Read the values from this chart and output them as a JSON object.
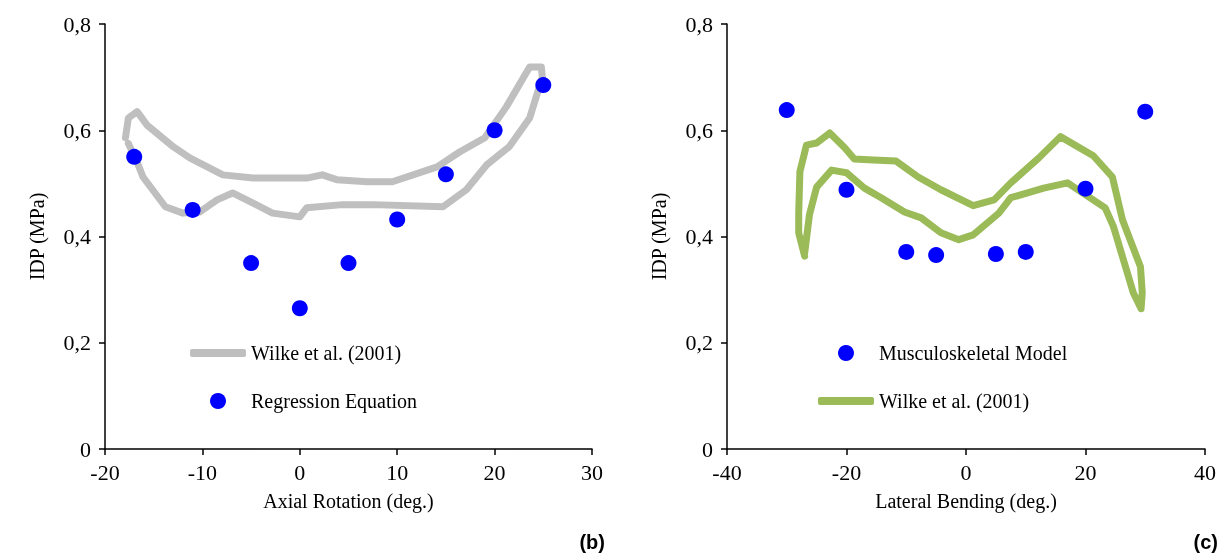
{
  "chart_data": [
    {
      "type": "line",
      "xlabel": "Axial Rotation (deg.)",
      "ylabel": "IDP (MPa)",
      "xlim": [
        -20,
        30
      ],
      "xticks": [
        -20,
        -10,
        0,
        10,
        20,
        30
      ],
      "ylim": [
        0,
        0.8
      ],
      "yticks": [
        0,
        {
          "value": 0.2,
          "label": "0,2"
        },
        {
          "value": 0.4,
          "label": "0,4"
        },
        {
          "value": 0.6,
          "label": "0,6"
        },
        {
          "value": 0.8,
          "label": "0,8"
        }
      ],
      "grid": false,
      "legend": "bottom",
      "line_style": "solid",
      "annotations": [
        "(b)"
      ],
      "series": [
        {
          "name": "Wilke et al. (2001)",
          "color": "#bfbfbf",
          "marker": "none",
          "x": [
            -17.9,
            -17.6,
            -16.7,
            -15.7,
            -13.0,
            -11.3,
            -9.5,
            -7.9,
            -4.8,
            0.7,
            2.3,
            3.8,
            6.9,
            9.5,
            14.1,
            16.4,
            19.0,
            21.2,
            23.6,
            24.8,
            24.9,
            23.6,
            21.5,
            19.2,
            17.1,
            14.7,
            7.5,
            4.4,
            0.7,
            0,
            -2.8,
            -4.8,
            -6.9,
            -8.5,
            -10.3,
            -12.0,
            -13.8,
            -16.1,
            -16.7,
            -17.6
          ],
          "values": [
            0.586,
            0.623,
            0.635,
            0.61,
            0.569,
            0.548,
            0.531,
            0.516,
            0.51,
            0.51,
            0.516,
            0.507,
            0.503,
            0.503,
            0.531,
            0.559,
            0.586,
            0.644,
            0.719,
            0.719,
            0.7,
            0.623,
            0.569,
            0.535,
            0.488,
            0.456,
            0.46,
            0.46,
            0.454,
            0.437,
            0.444,
            0.463,
            0.482,
            0.469,
            0.446,
            0.444,
            0.456,
            0.512,
            0.54,
            0.575
          ]
        },
        {
          "name": "Regression Equation",
          "type": "scatter",
          "color": "#0000ff",
          "marker": "circle",
          "x": [
            -17,
            -11,
            -5,
            0,
            5,
            10,
            15,
            20,
            25
          ],
          "values": [
            0.55,
            0.45,
            0.35,
            0.265,
            0.35,
            0.432,
            0.517,
            0.6,
            0.685
          ]
        }
      ]
    },
    {
      "type": "line",
      "xlabel": "Lateral Bending (deg.)",
      "ylabel": "IDP (MPa)",
      "xlim": [
        -40,
        40
      ],
      "xticks": [
        -40,
        -20,
        0,
        20,
        40
      ],
      "ylim": [
        0,
        0.8
      ],
      "yticks": [
        0,
        {
          "value": 0.2,
          "label": "0,2"
        },
        {
          "value": 0.4,
          "label": "0,4"
        },
        {
          "value": 0.6,
          "label": "0,6"
        },
        {
          "value": 0.8,
          "label": "0,8"
        }
      ],
      "grid": false,
      "legend": "bottom",
      "line_style": "solid",
      "annotations": [
        "(c)"
      ],
      "series": [
        {
          "name": "Musculoskeletal Model",
          "type": "scatter",
          "color": "#0000ff",
          "marker": "circle",
          "x": [
            -30,
            -20,
            -10,
            -5,
            5,
            10,
            20,
            30
          ],
          "values": [
            0.638,
            0.488,
            0.371,
            0.365,
            0.367,
            0.371,
            0.49,
            0.635
          ]
        },
        {
          "name": "Wilke et al. (2001)",
          "color": "#9bbb59",
          "marker": "none",
          "x": [
            -27.0,
            -28.0,
            -28.0,
            -27.8,
            -26.7,
            -25.0,
            -22.8,
            -20.3,
            -18.7,
            -15.5,
            -11.7,
            -8.0,
            -4.2,
            1.2,
            4.7,
            7.5,
            12.2,
            15.8,
            21.3,
            24.5,
            26.2,
            29.2,
            29.5,
            29.3,
            28.0,
            24.7,
            23.3,
            17.0,
            13.0,
            10.3,
            7.5,
            5.5,
            1.2,
            -1.2,
            -4.2,
            -7.5,
            -10.3,
            -14.2,
            -17.0,
            -20.0,
            -22.5,
            -25.0,
            -26.2,
            -27.0
          ],
          "values": [
            0.363,
            0.407,
            0.444,
            0.522,
            0.572,
            0.576,
            0.595,
            0.567,
            0.546,
            0.544,
            0.542,
            0.512,
            0.488,
            0.458,
            0.469,
            0.501,
            0.548,
            0.588,
            0.552,
            0.512,
            0.431,
            0.343,
            0.294,
            0.264,
            0.294,
            0.418,
            0.454,
            0.501,
            0.491,
            0.482,
            0.473,
            0.444,
            0.403,
            0.394,
            0.407,
            0.435,
            0.446,
            0.473,
            0.491,
            0.52,
            0.525,
            0.493,
            0.441,
            0.369
          ]
        }
      ]
    }
  ]
}
